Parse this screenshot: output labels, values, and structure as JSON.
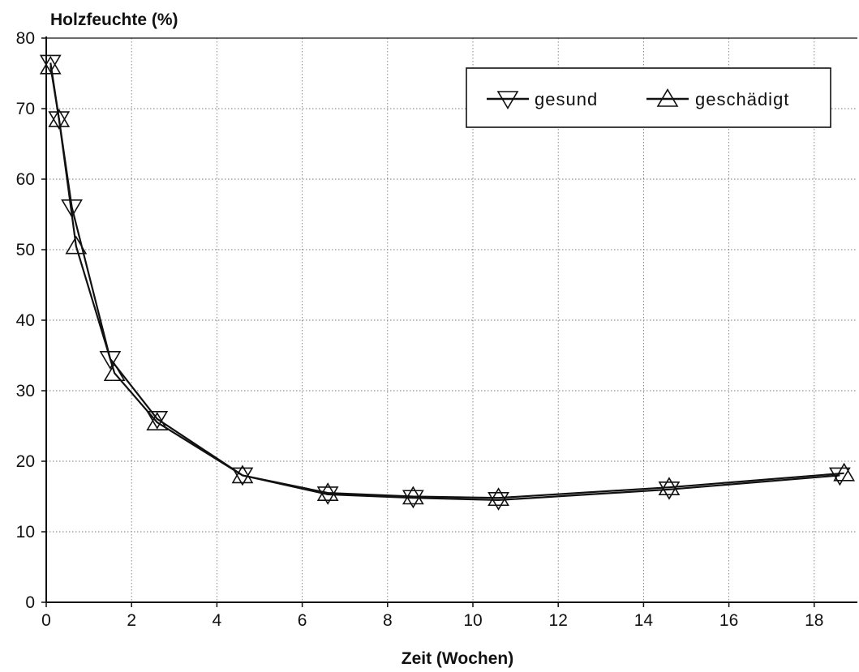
{
  "chart_data": {
    "type": "line",
    "title": "",
    "ylabel": "Holzfeuchte (%)",
    "xlabel": "Zeit (Wochen)",
    "xlim": [
      0,
      19
    ],
    "ylim": [
      0,
      80
    ],
    "xticks": [
      0,
      2,
      4,
      6,
      8,
      10,
      12,
      14,
      16,
      18
    ],
    "yticks": [
      0,
      10,
      20,
      30,
      40,
      50,
      60,
      70,
      80
    ],
    "grid": true,
    "legend_position": "top-right",
    "series": [
      {
        "name": "gesund",
        "marker": "triangle-down",
        "x": [
          0.1,
          0.3,
          0.6,
          1.5,
          2.6,
          4.6,
          6.6,
          8.6,
          10.6,
          14.6,
          18.6
        ],
        "y": [
          76.5,
          68.5,
          56,
          34.5,
          26,
          18,
          15.3,
          14.8,
          14.5,
          16,
          18
        ]
      },
      {
        "name": "geschädigt",
        "marker": "triangle-up",
        "x": [
          0.1,
          0.3,
          0.7,
          1.6,
          2.6,
          4.6,
          6.6,
          8.6,
          10.6,
          14.6,
          18.7
        ],
        "y": [
          76,
          68.5,
          50.5,
          32.5,
          25.5,
          18,
          15.5,
          15,
          14.8,
          16.3,
          18.3
        ]
      }
    ]
  }
}
